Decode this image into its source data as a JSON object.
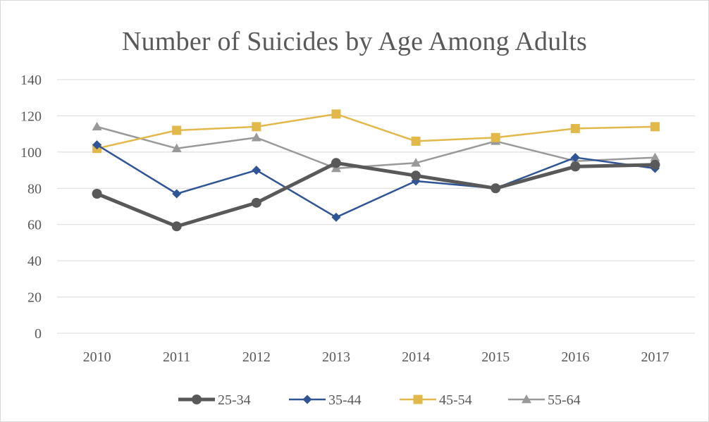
{
  "chart_data": {
    "type": "line",
    "title": "Number of Suicides by Age Among Adults",
    "xlabel": "",
    "ylabel": "",
    "categories": [
      "2010",
      "2011",
      "2012",
      "2013",
      "2014",
      "2015",
      "2016",
      "2017"
    ],
    "ylim": [
      0,
      140
    ],
    "yticks": [
      "0",
      "20",
      "40",
      "60",
      "80",
      "100",
      "120",
      "140"
    ],
    "grid": "horizontal",
    "legend_position": "bottom",
    "series": [
      {
        "name": "25-34",
        "values": [
          77,
          59,
          72,
          94,
          87,
          80,
          92,
          93
        ],
        "color": "#595959",
        "marker": "circle"
      },
      {
        "name": "35-44",
        "values": [
          104,
          77,
          90,
          64,
          84,
          80,
          97,
          91
        ],
        "color": "#2f5597",
        "marker": "diamond"
      },
      {
        "name": "45-54",
        "values": [
          102,
          112,
          114,
          121,
          106,
          108,
          113,
          114
        ],
        "color": "#e2b84b",
        "marker": "square"
      },
      {
        "name": "55-64",
        "values": [
          114,
          102,
          108,
          91,
          94,
          106,
          95,
          97
        ],
        "color": "#999999",
        "marker": "triangle"
      }
    ]
  }
}
